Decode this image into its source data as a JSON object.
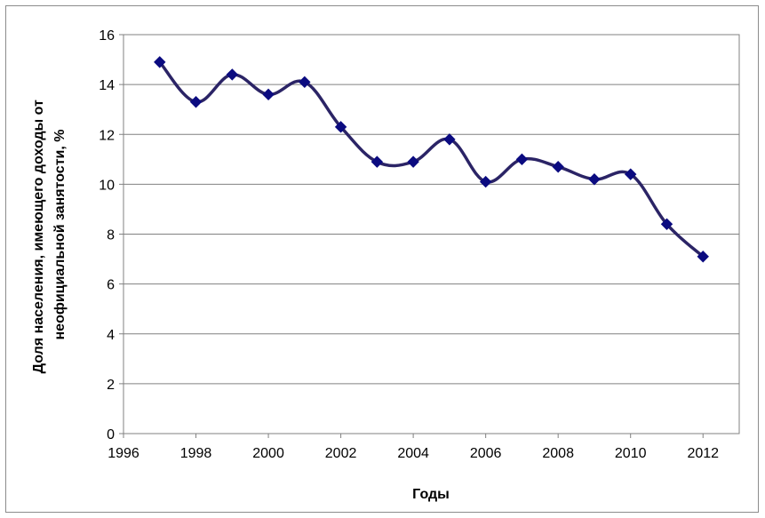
{
  "chart_data": {
    "type": "line",
    "title": "",
    "xlabel": "Годы",
    "ylabel_lines": [
      "Доля населения, имеющего доходы от",
      "неофициальной  занятости, %"
    ],
    "xlim": [
      1996,
      2013
    ],
    "ylim": [
      0,
      16
    ],
    "x_ticks": [
      1996,
      1998,
      2000,
      2002,
      2004,
      2006,
      2008,
      2010,
      2012
    ],
    "y_ticks": [
      0,
      2,
      4,
      6,
      8,
      10,
      12,
      14,
      16
    ],
    "grid": "horizontal",
    "legend": "none",
    "smooth": true,
    "series": [
      {
        "line_color": "#2b2466",
        "marker_color": "#0b0b80",
        "marker": "diamond",
        "x": [
          1997,
          1998,
          1999,
          2000,
          2001,
          2002,
          2003,
          2004,
          2005,
          2006,
          2007,
          2008,
          2009,
          2010,
          2011,
          2012
        ],
        "y": [
          14.9,
          13.3,
          14.4,
          13.6,
          14.1,
          12.3,
          10.9,
          10.9,
          11.8,
          10.1,
          11.0,
          10.7,
          10.2,
          10.4,
          8.4,
          7.1
        ]
      }
    ]
  }
}
